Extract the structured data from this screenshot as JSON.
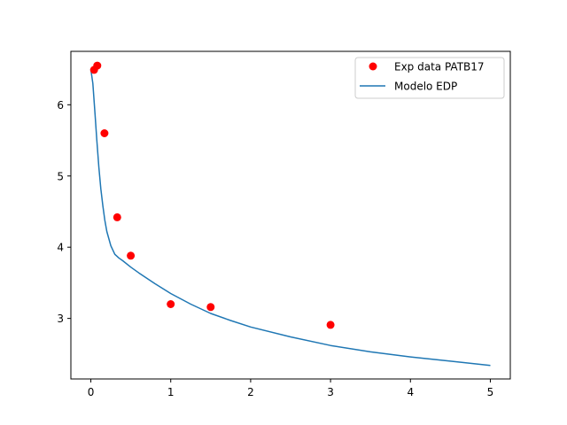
{
  "chart_data": {
    "type": "scatter",
    "title": "",
    "xlabel": "",
    "ylabel": "",
    "xlim": [
      -0.25,
      5.25
    ],
    "ylim": [
      2.15,
      6.75
    ],
    "x_ticks": [
      0,
      1,
      2,
      3,
      4,
      5
    ],
    "y_ticks": [
      3,
      4,
      5,
      6
    ],
    "grid": false,
    "legend_position": "top-right",
    "series": [
      {
        "name": "Exp data PATB17",
        "kind": "markers",
        "color": "#ff0000",
        "x": [
          0.04,
          0.08,
          0.17,
          0.33,
          0.5,
          1.0,
          1.5,
          3.0
        ],
        "y": [
          6.49,
          6.55,
          5.6,
          4.42,
          3.88,
          3.2,
          3.16,
          2.91
        ]
      },
      {
        "name": "Modelo EDP",
        "kind": "line",
        "color": "#1f77b4",
        "x": [
          0.0,
          0.025,
          0.05,
          0.075,
          0.1,
          0.125,
          0.15,
          0.175,
          0.2,
          0.25,
          0.3,
          0.35,
          0.4,
          0.5,
          0.6,
          0.8,
          1.0,
          1.25,
          1.5,
          1.75,
          2.0,
          2.5,
          3.0,
          3.5,
          4.0,
          4.5,
          5.0
        ],
        "y": [
          6.5,
          6.3,
          5.9,
          5.5,
          5.12,
          4.82,
          4.58,
          4.38,
          4.22,
          4.02,
          3.9,
          3.85,
          3.81,
          3.72,
          3.64,
          3.49,
          3.35,
          3.2,
          3.07,
          2.97,
          2.88,
          2.74,
          2.62,
          2.53,
          2.46,
          2.4,
          2.34
        ]
      }
    ]
  }
}
